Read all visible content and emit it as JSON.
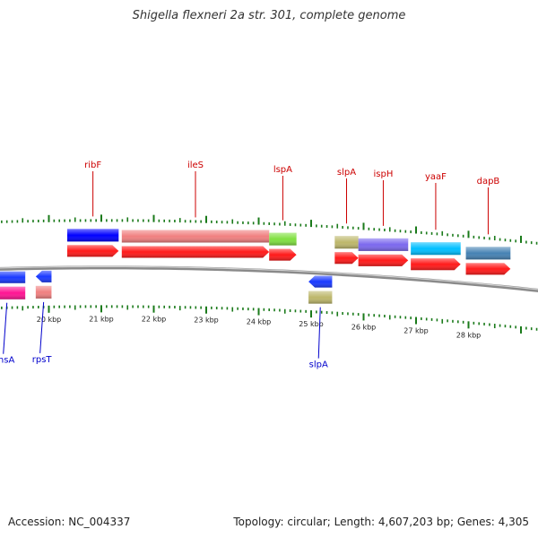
{
  "title": "Shigella flexneri 2a str. 301, complete genome",
  "footer": {
    "accession": "Accession: NC_004337",
    "summary": "Topology: circular; Length: 4,607,203 bp; Genes: 4,305"
  },
  "colors": {
    "backbone": "#8a8a8a",
    "ticks": "#1a7a1a",
    "forward_label": "#cc0000",
    "reverse_label": "#0000cc",
    "cds_forward": "#ff1a1a",
    "cds_reverse": "#1a3aff"
  },
  "scale": {
    "unit": "kbp",
    "major_ticks": [
      {
        "kbp": 20,
        "label": "20 kbp"
      },
      {
        "kbp": 21,
        "label": "21 kbp"
      },
      {
        "kbp": 22,
        "label": "22 kbp"
      },
      {
        "kbp": 23,
        "label": "23 kbp"
      },
      {
        "kbp": 24,
        "label": "24 kbp"
      },
      {
        "kbp": 25,
        "label": "25 kbp"
      },
      {
        "kbp": 26,
        "label": "26 kbp"
      },
      {
        "kbp": 27,
        "label": "27 kbp"
      },
      {
        "kbp": 28,
        "label": "28 kbp"
      }
    ]
  },
  "forward_genes": [
    {
      "name": "ribF",
      "start_kbp": 20.35,
      "end_kbp": 21.33,
      "color": "#0000ff"
    },
    {
      "name": "ileS",
      "start_kbp": 21.39,
      "end_kbp": 24.2,
      "color": "#f08080"
    },
    {
      "name": "lspA",
      "start_kbp": 24.2,
      "end_kbp": 24.72,
      "color": "#80e040"
    },
    {
      "name": "slpA",
      "start_kbp": 25.45,
      "end_kbp": 25.9,
      "color": "#bdb76b"
    },
    {
      "name": "ispH",
      "start_kbp": 25.9,
      "end_kbp": 26.85,
      "color": "#7b68ee"
    },
    {
      "name": "yaaF",
      "start_kbp": 26.9,
      "end_kbp": 27.85,
      "color": "#00bfff"
    },
    {
      "name": "dapB",
      "start_kbp": 27.95,
      "end_kbp": 28.8,
      "color": "#4682b4"
    }
  ],
  "reverse_genes": [
    {
      "name": "insA",
      "start_kbp": 18.85,
      "end_kbp": 19.55,
      "color": "#ff1493"
    },
    {
      "name": "rpsT",
      "start_kbp": 19.75,
      "end_kbp": 20.05,
      "color": "#f08080"
    },
    {
      "name": "slpA",
      "start_kbp": 24.95,
      "end_kbp": 25.4,
      "color": "#bdb76b"
    }
  ]
}
